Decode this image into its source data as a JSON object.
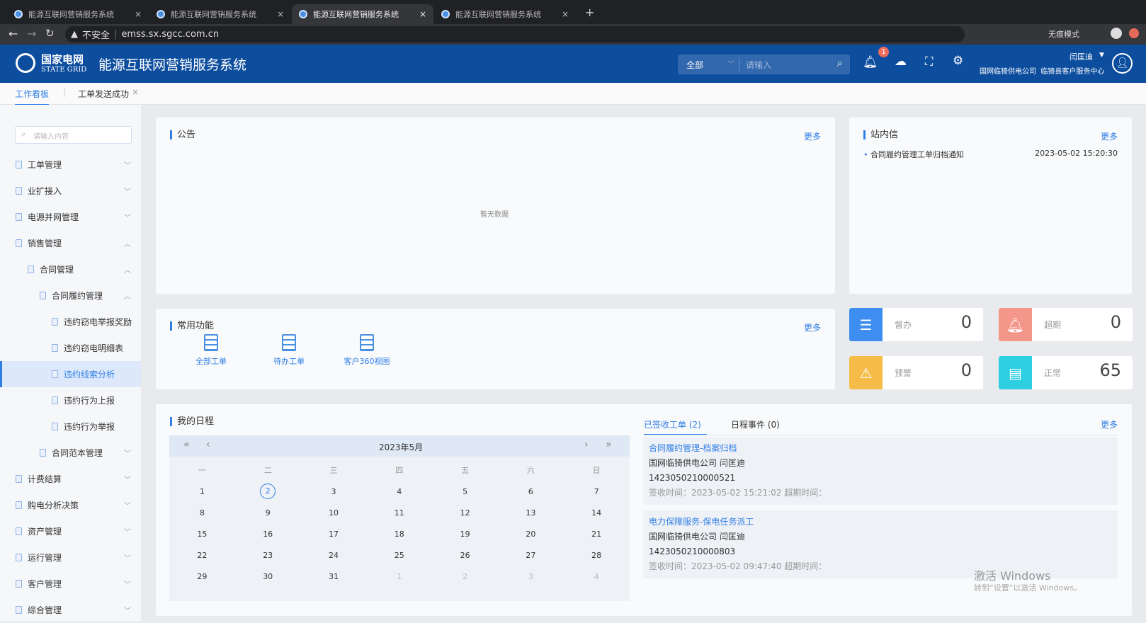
{
  "browser": {
    "tabs": [
      {
        "title": "能源互联网营销服务系统"
      },
      {
        "title": "能源互联网营销服务系统"
      },
      {
        "title": "能源互联网营销服务系统",
        "active": true
      },
      {
        "title": "能源互联网营销服务系统"
      }
    ],
    "insecure": "不安全",
    "url": "emss.sx.sgcc.com.cn",
    "incognito": "无痕模式"
  },
  "header": {
    "logo_cn": "国家电网",
    "logo_en": "STATE GRID",
    "title": "能源互联网营销服务系统",
    "search_scope": "全部",
    "search_placeholder": "请输入",
    "notify_count": "1",
    "user": "闫匡迪",
    "org": "国网临猗供电公司  临猗县客户服务中心"
  },
  "page_tabs": [
    {
      "label": "工作看板",
      "active": true
    },
    {
      "label": "工单发送成功"
    }
  ],
  "sidebar": {
    "search_placeholder": "请输入内容",
    "items": [
      {
        "label": "工单管理",
        "level": 0,
        "chev": "﹀"
      },
      {
        "label": "业扩接入",
        "level": 0,
        "chev": "﹀"
      },
      {
        "label": "电源并网管理",
        "level": 0,
        "chev": "﹀"
      },
      {
        "label": "销售管理",
        "level": 0,
        "chev": "︿"
      },
      {
        "label": "合同管理",
        "level": 1,
        "chev": "︿"
      },
      {
        "label": "合同履约管理",
        "level": 2,
        "chev": "︿"
      },
      {
        "label": "违约窃电举报奖励",
        "level": 3
      },
      {
        "label": "违约窃电明细表",
        "level": 3
      },
      {
        "label": "违约线索分析",
        "level": 3,
        "selected": true
      },
      {
        "label": "违约行为上报",
        "level": 3
      },
      {
        "label": "违约行为举报",
        "level": 3
      },
      {
        "label": "合同范本管理",
        "level": 2,
        "chev": "﹀"
      },
      {
        "label": "计费结算",
        "level": 0,
        "chev": "﹀"
      },
      {
        "label": "购电分析决策",
        "level": 0,
        "chev": "﹀"
      },
      {
        "label": "资产管理",
        "level": 0,
        "chev": "﹀"
      },
      {
        "label": "运行管理",
        "level": 0,
        "chev": "﹀"
      },
      {
        "label": "客户管理",
        "level": 0,
        "chev": "﹀"
      },
      {
        "label": "综合管理",
        "level": 0,
        "chev": "﹀"
      }
    ]
  },
  "notice": {
    "title": "公告",
    "more": "更多",
    "empty": "暂无数据"
  },
  "messages": {
    "title": "站内信",
    "more": "更多",
    "items": [
      {
        "text": "合同履约管理工单归档通知",
        "time": "2023-05-02 15:20:30"
      }
    ]
  },
  "functions": {
    "title": "常用功能",
    "more": "更多",
    "items": [
      {
        "label": "全部工单"
      },
      {
        "label": "待办工单"
      },
      {
        "label": "客户360视图"
      }
    ]
  },
  "stats": [
    {
      "label": "督办",
      "value": "0",
      "color": "#3d8ef0",
      "icon": "supervise-icon"
    },
    {
      "label": "超期",
      "value": "0",
      "color": "#f4968a",
      "icon": "bell-icon"
    },
    {
      "label": "预警",
      "value": "0",
      "color": "#f5bd47",
      "icon": "alarm-icon"
    },
    {
      "label": "正常",
      "value": "65",
      "color": "#2ecfe3",
      "icon": "document-icon"
    }
  ],
  "schedule": {
    "title": "我的日程",
    "month": "2023年5月",
    "weekdays": [
      "一",
      "二",
      "三",
      "四",
      "五",
      "六",
      "日"
    ],
    "weeks": [
      [
        "1",
        "2",
        "3",
        "4",
        "5",
        "6",
        "7"
      ],
      [
        "8",
        "9",
        "10",
        "11",
        "12",
        "13",
        "14"
      ],
      [
        "15",
        "16",
        "17",
        "18",
        "19",
        "20",
        "21"
      ],
      [
        "22",
        "23",
        "24",
        "25",
        "26",
        "27",
        "28"
      ],
      [
        "29",
        "30",
        "31",
        "1",
        "2",
        "3",
        "4"
      ]
    ],
    "today": "2",
    "tabs": [
      {
        "label": "已签收工单 (2)",
        "active": true
      },
      {
        "label": "日程事件 (0)"
      }
    ],
    "more": "更多",
    "items": [
      {
        "title": "合同履约管理-档案归档",
        "org": "国网临猗供电公司 闫匡迪",
        "no": "1423050210000521",
        "time": "签收时间：2023-05-02 15:21:02 超期时间："
      },
      {
        "title": "电力保障服务-保电任务派工",
        "org": "国网临猗供电公司 闫匡迪",
        "no": "1423050210000803",
        "time": "签收时间：2023-05-02 09:47:40 超期时间："
      }
    ]
  },
  "watermark": {
    "line1": "激活 Windows",
    "line2": "转到“设置”以激活 Windows。"
  }
}
